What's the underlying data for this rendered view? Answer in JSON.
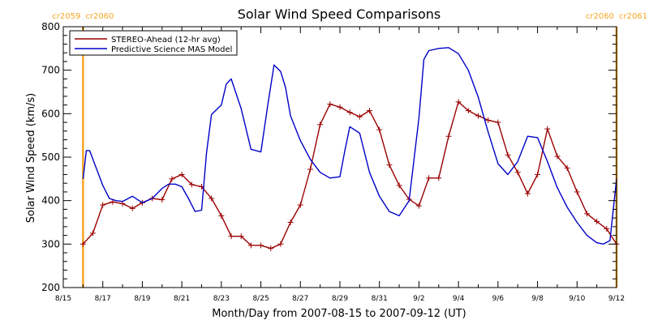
{
  "chart_data": {
    "type": "line",
    "title": "Solar Wind Speed Comparisons",
    "xlabel": "Month/Day from 2007-08-15 to 2007-09-12 (UT)",
    "ylabel": "Solar Wind Speed (km/s)",
    "xlim": [
      "2007-08-15",
      "2007-09-12"
    ],
    "ylim": [
      200,
      800
    ],
    "x_ticks": [
      "8/15",
      "8/17",
      "8/19",
      "8/21",
      "8/23",
      "8/25",
      "8/27",
      "8/29",
      "8/31",
      "9/2",
      "9/4",
      "9/6",
      "9/8",
      "9/10",
      "9/12"
    ],
    "y_ticks": [
      200,
      300,
      400,
      500,
      600,
      700,
      800
    ],
    "grid": false,
    "legend_position": "top-left",
    "markers": [
      {
        "date": "2007-08-16",
        "left_label": "cr2059",
        "right_label": "cr2060",
        "color": "#F5A623"
      },
      {
        "date": "2007-09-12",
        "left_label": "cr2060",
        "right_label": "cr2061",
        "color": "#F5A623"
      }
    ],
    "series": [
      {
        "name": "STEREO-Ahead (12-hr avg)",
        "color": "#9B0000",
        "marker": "+",
        "x": [
          "2007-08-16",
          "2007-08-16T12",
          "2007-08-17",
          "2007-08-17T12",
          "2007-08-18",
          "2007-08-18T12",
          "2007-08-19",
          "2007-08-19T12",
          "2007-08-20",
          "2007-08-20T12",
          "2007-08-21",
          "2007-08-21T12",
          "2007-08-22",
          "2007-08-22T12",
          "2007-08-23",
          "2007-08-23T12",
          "2007-08-24",
          "2007-08-24T12",
          "2007-08-25",
          "2007-08-25T12",
          "2007-08-26",
          "2007-08-26T12",
          "2007-08-27",
          "2007-08-27T12",
          "2007-08-28",
          "2007-08-28T12",
          "2007-08-29",
          "2007-08-29T12",
          "2007-08-30",
          "2007-08-30T12",
          "2007-08-31",
          "2007-08-31T12",
          "2007-09-01",
          "2007-09-01T12",
          "2007-09-02",
          "2007-09-02T12",
          "2007-09-03",
          "2007-09-03T12",
          "2007-09-04",
          "2007-09-04T12",
          "2007-09-05",
          "2007-09-05T12",
          "2007-09-06",
          "2007-09-06T12",
          "2007-09-07",
          "2007-09-07T12",
          "2007-09-08",
          "2007-09-08T12",
          "2007-09-09",
          "2007-09-09T12",
          "2007-09-10",
          "2007-09-10T12",
          "2007-09-11",
          "2007-09-11T12",
          "2007-09-12"
        ],
        "y": [
          300,
          325,
          390,
          397,
          393,
          382,
          395,
          405,
          402,
          450,
          460,
          437,
          432,
          405,
          365,
          318,
          318,
          297,
          297,
          290,
          300,
          350,
          390,
          472,
          575,
          622,
          615,
          603,
          593,
          607,
          563,
          482,
          435,
          403,
          388,
          452,
          452,
          548,
          627,
          607,
          595,
          585,
          580,
          505,
          465,
          416,
          460,
          565,
          502,
          475,
          420,
          370,
          352,
          335,
          300
        ]
      },
      {
        "name": "Predictive Science MAS Model",
        "color": "#0000C8",
        "x": [
          "2007-08-16",
          "2007-08-16T04",
          "2007-08-16T08",
          "2007-08-16T15",
          "2007-08-17",
          "2007-08-17T08",
          "2007-08-17T16",
          "2007-08-18",
          "2007-08-18T12",
          "2007-08-19",
          "2007-08-19T12",
          "2007-08-20",
          "2007-08-20T08",
          "2007-08-20T16",
          "2007-08-21",
          "2007-08-21T08",
          "2007-08-21T16",
          "2007-08-22",
          "2007-08-22T06",
          "2007-08-22T12",
          "2007-08-23",
          "2007-08-23T06",
          "2007-08-23T12",
          "2007-08-24",
          "2007-08-24T12",
          "2007-08-25",
          "2007-08-25T08",
          "2007-08-25T16",
          "2007-08-26",
          "2007-08-26T06",
          "2007-08-26T12",
          "2007-08-27",
          "2007-08-27T12",
          "2007-08-28",
          "2007-08-28T12",
          "2007-08-29",
          "2007-08-29T06",
          "2007-08-29T12",
          "2007-08-30",
          "2007-08-30T12",
          "2007-08-31",
          "2007-08-31T12",
          "2007-09-01",
          "2007-09-01T12",
          "2007-09-02",
          "2007-09-02T06",
          "2007-09-02T12",
          "2007-09-03",
          "2007-09-03T12",
          "2007-09-04",
          "2007-09-04T12",
          "2007-09-05",
          "2007-09-05T12",
          "2007-09-06",
          "2007-09-06T12",
          "2007-09-07",
          "2007-09-07T12",
          "2007-09-08",
          "2007-09-08T12",
          "2007-09-09",
          "2007-09-09T12",
          "2007-09-10",
          "2007-09-10T12",
          "2007-09-11",
          "2007-09-11T08",
          "2007-09-11T16",
          "2007-09-12"
        ],
        "y": [
          450,
          515,
          515,
          480,
          435,
          405,
          400,
          398,
          410,
          395,
          405,
          428,
          438,
          438,
          432,
          405,
          375,
          378,
          510,
          598,
          620,
          668,
          680,
          612,
          518,
          512,
          615,
          712,
          697,
          660,
          595,
          538,
          495,
          465,
          452,
          455,
          515,
          570,
          555,
          465,
          410,
          375,
          365,
          400,
          590,
          725,
          745,
          750,
          752,
          738,
          700,
          638,
          558,
          485,
          460,
          490,
          548,
          545,
          490,
          430,
          385,
          350,
          320,
          303,
          300,
          308,
          450
        ]
      }
    ]
  }
}
